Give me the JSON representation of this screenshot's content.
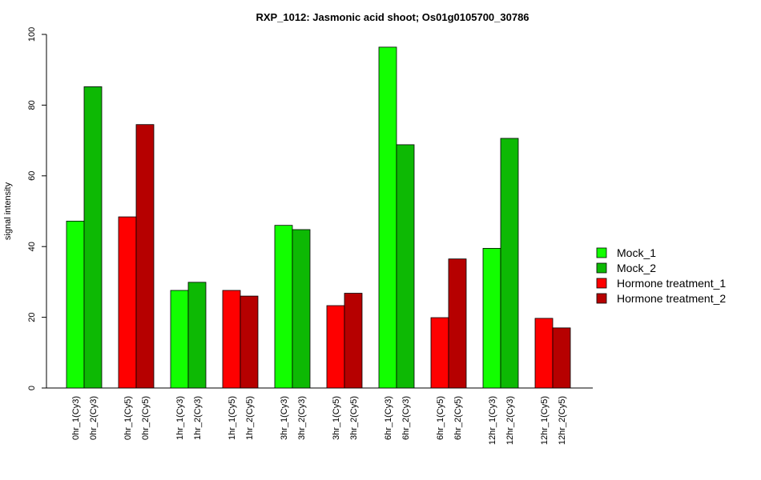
{
  "chart_data": {
    "type": "bar",
    "title": "RXP_1012: Jasmonic acid shoot; Os01g0105700_30786",
    "ylabel": "signal intensity",
    "xlabel": "",
    "ylim": [
      0,
      100
    ],
    "yticks": [
      0,
      20,
      40,
      60,
      80,
      100
    ],
    "groups": [
      {
        "bars": [
          {
            "label": "0hr_1(Cy3)",
            "value": 47.2,
            "series": 0
          },
          {
            "label": "0hr_2(Cy3)",
            "value": 85.2,
            "series": 1
          }
        ]
      },
      {
        "bars": [
          {
            "label": "0hr_1(Cy5)",
            "value": 48.4,
            "series": 2
          },
          {
            "label": "0hr_2(Cy5)",
            "value": 74.5,
            "series": 3
          }
        ]
      },
      {
        "bars": [
          {
            "label": "1hr_1(Cy3)",
            "value": 27.6,
            "series": 0
          },
          {
            "label": "1hr_2(Cy3)",
            "value": 29.9,
            "series": 1
          }
        ]
      },
      {
        "bars": [
          {
            "label": "1hr_1(Cy5)",
            "value": 27.6,
            "series": 2
          },
          {
            "label": "1hr_2(Cy5)",
            "value": 26.0,
            "series": 3
          }
        ]
      },
      {
        "bars": [
          {
            "label": "3hr_1(Cy3)",
            "value": 46.0,
            "series": 0
          },
          {
            "label": "3hr_2(Cy3)",
            "value": 44.8,
            "series": 1
          }
        ]
      },
      {
        "bars": [
          {
            "label": "3hr_1(Cy5)",
            "value": 23.3,
            "series": 2
          },
          {
            "label": "3hr_2(Cy5)",
            "value": 26.8,
            "series": 3
          }
        ]
      },
      {
        "bars": [
          {
            "label": "6hr_1(Cy3)",
            "value": 96.4,
            "series": 0
          },
          {
            "label": "6hr_2(Cy3)",
            "value": 68.8,
            "series": 1
          }
        ]
      },
      {
        "bars": [
          {
            "label": "6hr_1(Cy5)",
            "value": 19.9,
            "series": 2
          },
          {
            "label": "6hr_2(Cy5)",
            "value": 36.5,
            "series": 3
          }
        ]
      },
      {
        "bars": [
          {
            "label": "12hr_1(Cy3)",
            "value": 39.5,
            "series": 0
          },
          {
            "label": "12hr_2(Cy3)",
            "value": 70.6,
            "series": 1
          }
        ]
      },
      {
        "bars": [
          {
            "label": "12hr_1(Cy5)",
            "value": 19.7,
            "series": 2
          },
          {
            "label": "12hr_2(Cy5)",
            "value": 17.0,
            "series": 3
          }
        ]
      }
    ],
    "series": [
      {
        "name": "Mock_1",
        "color": "#12fe00"
      },
      {
        "name": "Mock_2",
        "color": "#0db904"
      },
      {
        "name": "Hormone treatment_1",
        "color": "#fe0000"
      },
      {
        "name": "Hormone treatment_2",
        "color": "#b60000"
      }
    ],
    "legend_position": "right"
  }
}
